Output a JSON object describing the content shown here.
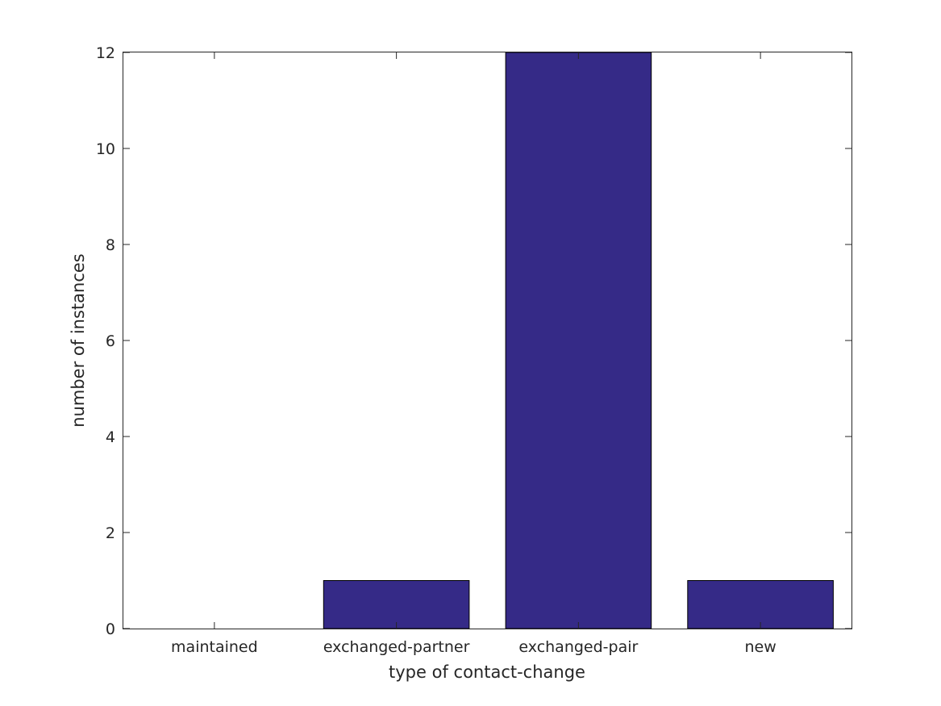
{
  "chart_data": {
    "type": "bar",
    "title": "",
    "xlabel": "type of contact-change",
    "ylabel": "number of instances",
    "categories": [
      "maintained",
      "exchanged-partner",
      "exchanged-pair",
      "new"
    ],
    "values": [
      0,
      1,
      12,
      1
    ],
    "ylim": [
      0,
      12
    ],
    "yticks": [
      0,
      2,
      4,
      6,
      8,
      10,
      12
    ],
    "grid": false,
    "legend": "none",
    "bar_color": "#352a87",
    "axis_color": "#262626"
  }
}
